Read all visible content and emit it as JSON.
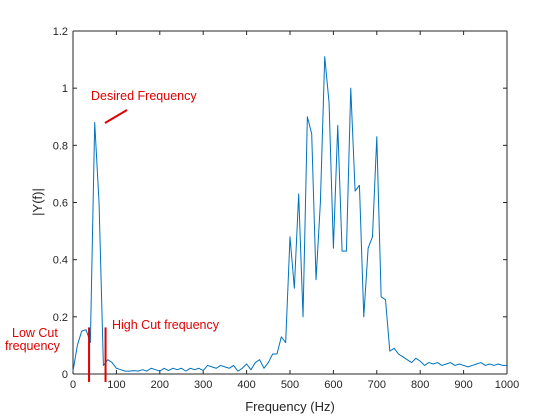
{
  "chart_data": {
    "type": "line",
    "title": "",
    "xlabel": "Frequency (Hz)",
    "ylabel": "|Y(f)|",
    "xlim": [
      0,
      1000
    ],
    "ylim": [
      0,
      1.2
    ],
    "grid": false,
    "x_ticks": [
      0,
      100,
      200,
      300,
      400,
      500,
      600,
      700,
      800,
      900,
      1000
    ],
    "y_ticks": [
      0,
      0.2,
      0.4,
      0.6,
      0.8,
      1,
      1.2
    ],
    "x_tick_labels": [
      "0",
      "100",
      "200",
      "300",
      "400",
      "500",
      "600",
      "700",
      "800",
      "900",
      "1000"
    ],
    "y_tick_labels": [
      "0",
      "0.2",
      "0.4",
      "0.6",
      "0.8",
      "1",
      "1.2"
    ],
    "series": [
      {
        "color": "#0072BD",
        "x": [
          0,
          10,
          20,
          30,
          40,
          50,
          60,
          70,
          80,
          90,
          100,
          110,
          120,
          130,
          140,
          150,
          160,
          170,
          180,
          190,
          200,
          210,
          220,
          230,
          240,
          250,
          260,
          270,
          280,
          290,
          300,
          310,
          320,
          330,
          340,
          350,
          360,
          370,
          380,
          390,
          400,
          410,
          420,
          430,
          440,
          450,
          460,
          470,
          480,
          490,
          500,
          510,
          520,
          530,
          540,
          550,
          560,
          570,
          580,
          590,
          600,
          610,
          620,
          630,
          640,
          650,
          660,
          670,
          680,
          690,
          700,
          710,
          720,
          730,
          740,
          750,
          760,
          770,
          780,
          790,
          800,
          810,
          820,
          830,
          840,
          850,
          860,
          870,
          880,
          890,
          900,
          910,
          920,
          930,
          940,
          950,
          960,
          970,
          980,
          990,
          1000
        ],
        "y": [
          0.01,
          0.1,
          0.15,
          0.155,
          0.11,
          0.88,
          0.6,
          0.03,
          0.05,
          0.04,
          0.02,
          0.015,
          0.01,
          0.01,
          0.012,
          0.01,
          0.015,
          0.01,
          0.02,
          0.015,
          0.01,
          0.02,
          0.012,
          0.02,
          0.015,
          0.02,
          0.01,
          0.02,
          0.015,
          0.02,
          0.012,
          0.03,
          0.025,
          0.02,
          0.03,
          0.025,
          0.02,
          0.03,
          0.01,
          0.02,
          0.035,
          0.015,
          0.04,
          0.05,
          0.02,
          0.04,
          0.07,
          0.07,
          0.13,
          0.11,
          0.48,
          0.3,
          0.63,
          0.2,
          0.9,
          0.84,
          0.33,
          0.6,
          1.11,
          0.95,
          0.44,
          0.87,
          0.43,
          0.43,
          1.0,
          0.64,
          0.66,
          0.2,
          0.44,
          0.48,
          0.83,
          0.27,
          0.26,
          0.08,
          0.09,
          0.07,
          0.06,
          0.05,
          0.04,
          0.055,
          0.045,
          0.03,
          0.04,
          0.035,
          0.04,
          0.03,
          0.035,
          0.04,
          0.03,
          0.035,
          0.03,
          0.025,
          0.03,
          0.035,
          0.04,
          0.03,
          0.035,
          0.03,
          0.035,
          0.03,
          0.03
        ]
      }
    ],
    "annotations": [
      {
        "text": "Desired Frequency",
        "color": "#e00000"
      },
      {
        "text": "Low Cut",
        "color": "#e00000"
      },
      {
        "text": "frequency",
        "color": "#e00000"
      },
      {
        "text": "High Cut frequency",
        "color": "#e00000"
      }
    ],
    "cutoff_lines": [
      {
        "x": 37,
        "color": "#e00000"
      },
      {
        "x": 75,
        "color": "#e00000"
      }
    ]
  }
}
